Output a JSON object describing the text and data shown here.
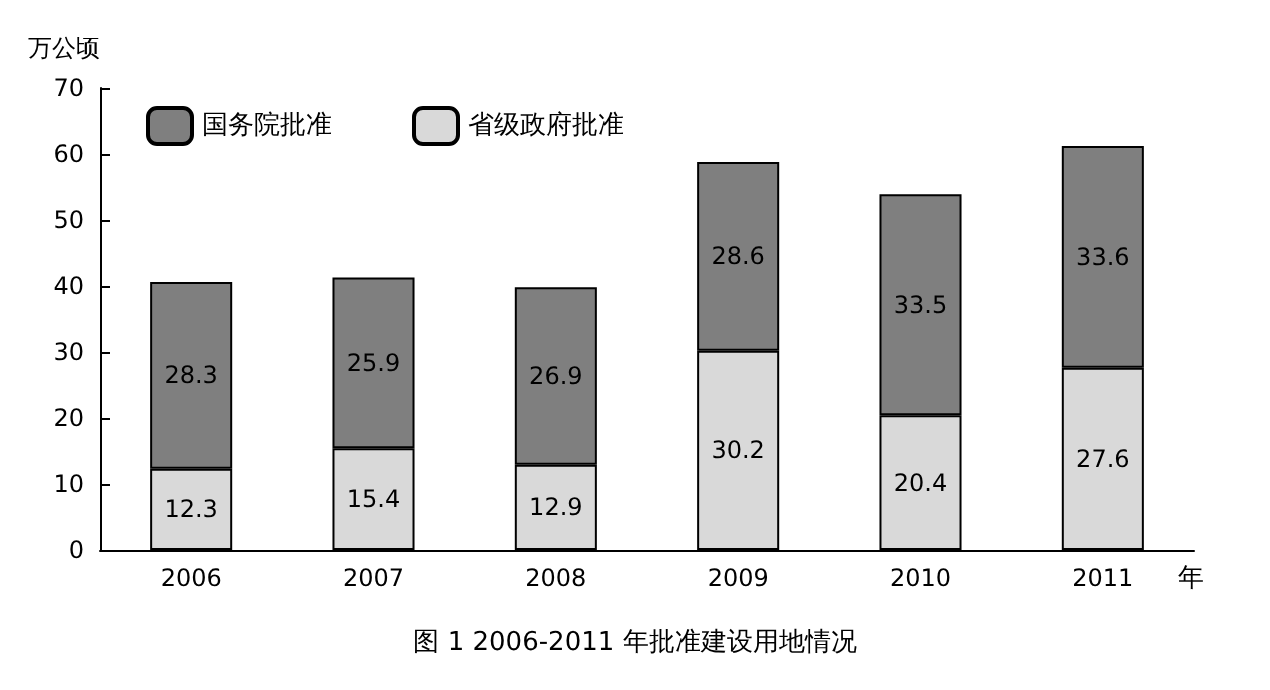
{
  "chart_data": {
    "type": "bar",
    "title": "图 1 2006-2011 年批准建设用地情况",
    "ylabel": "万公顷",
    "xlabel": "年",
    "categories": [
      "2006",
      "2007",
      "2008",
      "2009",
      "2010",
      "2011"
    ],
    "series": [
      {
        "name": "省级政府批准",
        "color": "#d9d9d9",
        "values": [
          12.3,
          15.4,
          12.9,
          30.2,
          20.4,
          27.6
        ]
      },
      {
        "name": "国务院批准",
        "color": "#7f7f7f",
        "values": [
          28.3,
          25.9,
          26.9,
          28.6,
          33.5,
          33.6
        ]
      }
    ],
    "stacked": true,
    "data_labels": true,
    "ylim": [
      0,
      70
    ],
    "yticks": [
      0,
      10,
      20,
      30,
      40,
      50,
      60,
      70
    ],
    "grid": false,
    "legend": "top left"
  }
}
